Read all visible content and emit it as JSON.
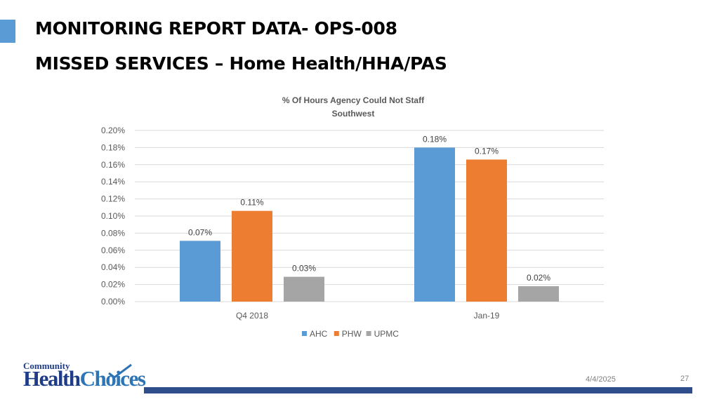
{
  "header": {
    "title_line1": "MONITORING REPORT DATA- OPS-008",
    "title_line2": "MISSED SERVICES – Home Health/HHA/PAS"
  },
  "chart_data": {
    "type": "bar",
    "title": "% Of  Hours Agency Could Not Staff",
    "subtitle": "Southwest",
    "categories": [
      "Q4 2018",
      "Jan-19"
    ],
    "series": [
      {
        "name": "AHC",
        "color": "#5b9bd5",
        "values": [
          0.071,
          0.18
        ],
        "labels": [
          "0.07%",
          "0.18%"
        ]
      },
      {
        "name": "PHW",
        "color": "#ed7d31",
        "values": [
          0.106,
          0.166
        ],
        "labels": [
          "0.11%",
          "0.17%"
        ]
      },
      {
        "name": "UPMC",
        "color": "#a5a5a5",
        "values": [
          0.029,
          0.018
        ],
        "labels": [
          "0.03%",
          "0.02%"
        ]
      }
    ],
    "yticks": [
      "0.00%",
      "0.02%",
      "0.04%",
      "0.06%",
      "0.08%",
      "0.10%",
      "0.12%",
      "0.14%",
      "0.16%",
      "0.18%",
      "0.20%"
    ],
    "ylim": [
      0,
      0.2
    ],
    "grid": true,
    "legend_position": "bottom"
  },
  "footer": {
    "date": "4/4/2025",
    "page": "27",
    "logo_top": "Community",
    "logo_main_a": "Health",
    "logo_main_b": "Choices"
  }
}
